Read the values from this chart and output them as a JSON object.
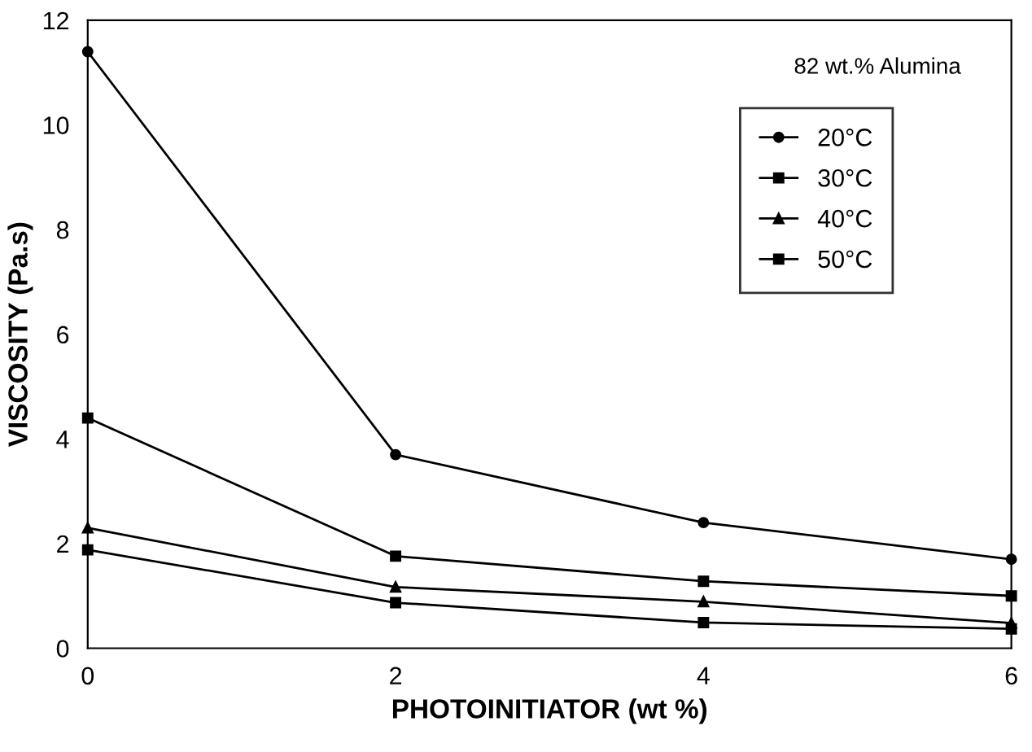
{
  "chart_data": {
    "type": "line",
    "xlabel": "PHOTOINITIATOR (wt %)",
    "ylabel": "VISCOSITY (Pa.s)",
    "x": [
      0,
      2,
      4,
      6
    ],
    "series": [
      {
        "name": "20°C",
        "color": "#000000",
        "marker": "circle",
        "values": [
          11.4,
          3.7,
          2.4,
          1.7
        ]
      },
      {
        "name": "30°C",
        "color": "#000000",
        "marker": "square",
        "values": [
          4.4,
          1.76,
          1.28,
          1.0
        ]
      },
      {
        "name": "40°C",
        "color": "#000000",
        "marker": "triangle",
        "values": [
          2.3,
          1.17,
          0.89,
          0.48
        ]
      },
      {
        "name": "50°C",
        "color": "#000000",
        "marker": "square",
        "values": [
          1.88,
          0.87,
          0.49,
          0.37
        ]
      }
    ],
    "xlim": [
      0,
      6
    ],
    "xticks": [
      0,
      2,
      4,
      6
    ],
    "ylim": [
      0,
      12
    ],
    "yticks": [
      0,
      2,
      4,
      6,
      8,
      10,
      12
    ],
    "annotations": [
      "82 wt.% Alumina"
    ],
    "legend": "top right",
    "grid": false,
    "line_style": "solid"
  }
}
